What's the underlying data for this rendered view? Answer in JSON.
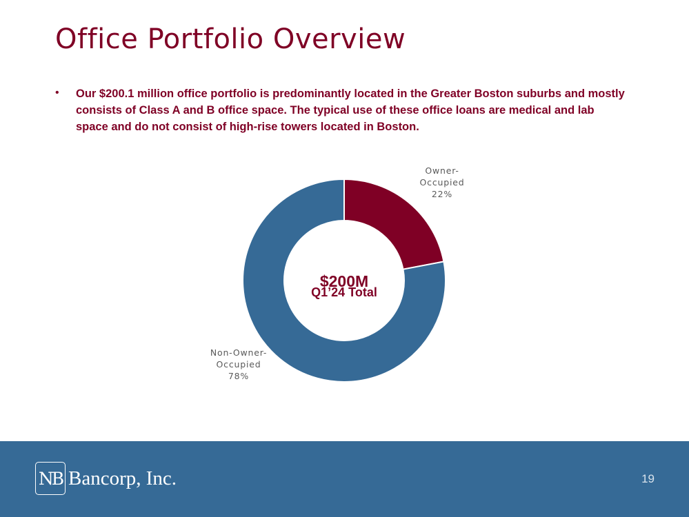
{
  "slide": {
    "title": "Office Portfolio Overview",
    "bullet": "Our $200.1 million office portfolio is predominantly located in the Greater Boston suburbs and mostly consists of Class A and B office space. The typical use of these office loans are medical and lab space and do not consist of high-rise towers located in Boston.",
    "bullet_symbol": "•",
    "page_number": "19",
    "logo": {
      "mark": "NB",
      "name": "Bancorp, Inc."
    }
  },
  "colors": {
    "brand_maroon": "#7f0025",
    "brand_blue": "#366a96",
    "label_gray": "#595959"
  },
  "chart_data": {
    "type": "pie",
    "variant": "donut",
    "center_text": [
      "$200M",
      "Q1’24 Total"
    ],
    "series": [
      {
        "label_lines": [
          "Owner-",
          "Occupied",
          "22%"
        ],
        "value": 22,
        "color": "#7f0025"
      },
      {
        "label_lines": [
          "Non-Owner-",
          "Occupied",
          "78%"
        ],
        "value": 78,
        "color": "#366a96"
      }
    ]
  }
}
